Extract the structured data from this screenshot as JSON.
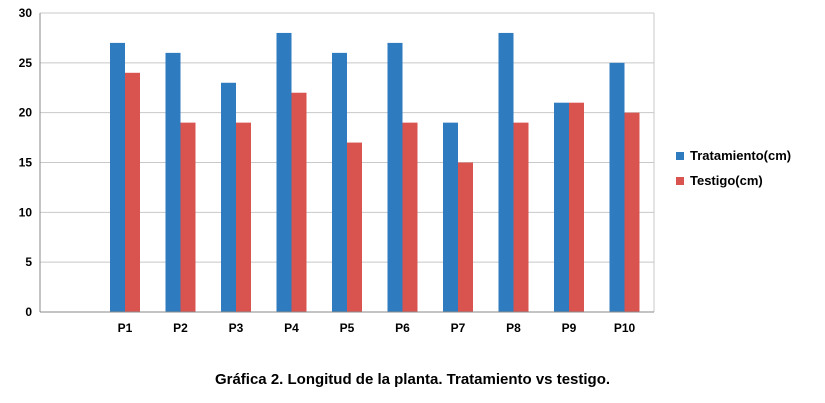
{
  "chart_data": {
    "type": "bar",
    "categories": [
      "P1",
      "P2",
      "P3",
      "P4",
      "P5",
      "P6",
      "P7",
      "P8",
      "P9",
      "P10"
    ],
    "series": [
      {
        "name": "Tratamiento(cm)",
        "color": "#2e7bbf",
        "values": [
          27,
          26,
          23,
          28,
          26,
          27,
          19,
          28,
          21,
          25
        ]
      },
      {
        "name": "Testigo(cm)",
        "color": "#d9534f",
        "values": [
          24,
          19,
          19,
          22,
          17,
          19,
          15,
          19,
          21,
          20
        ]
      }
    ],
    "title": "",
    "xlabel": "",
    "ylabel": "",
    "ylim": [
      0,
      30
    ],
    "yticks": [
      0,
      5,
      10,
      15,
      20,
      25,
      30
    ],
    "grid": true,
    "legend": "right"
  },
  "caption": "Gráfica 2. Longitud de la planta. Tratamiento vs testigo."
}
